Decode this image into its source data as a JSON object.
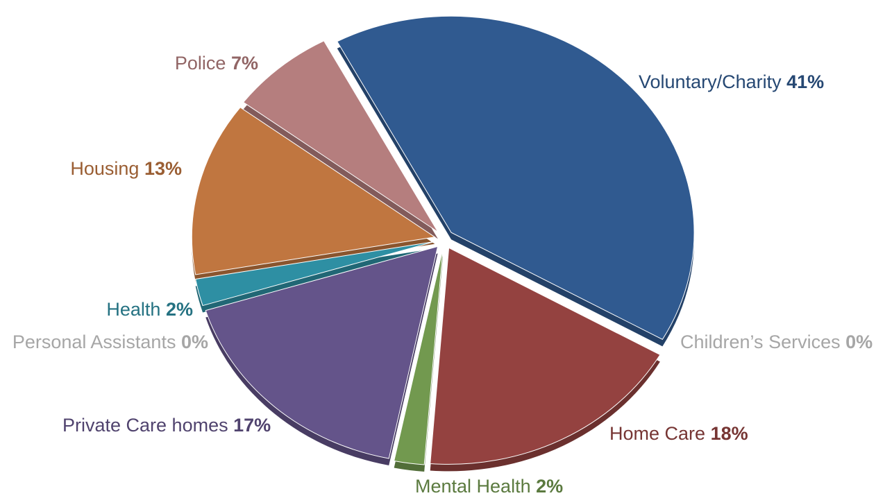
{
  "chart_data": {
    "type": "pie",
    "categories": [
      "Voluntary/Charity",
      "Children’s Services",
      "Home Care",
      "Mental Health",
      "Private Care homes",
      "Personal Assistants",
      "Health",
      "Housing",
      "Police"
    ],
    "values": [
      41,
      0,
      18,
      2,
      17,
      0,
      2,
      13,
      7
    ],
    "value_labels": [
      "41%",
      "0%",
      "18%",
      "2%",
      "17%",
      "0%",
      "2%",
      "13%",
      "7%"
    ],
    "colors": [
      "#305a90",
      "#a6a6a6",
      "#944240",
      "#72994f",
      "#64548a",
      "#a6a6a6",
      "#2e8fa3",
      "#c07640",
      "#b57e7e"
    ]
  }
}
